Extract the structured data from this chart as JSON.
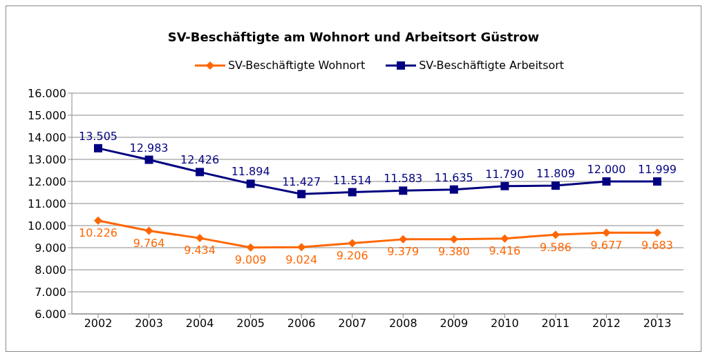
{
  "chart_data": {
    "type": "line",
    "title": "SV-Beschäftigte am Wohnort und Arbeitsort Güstrow",
    "categories": [
      "2002",
      "2003",
      "2004",
      "2005",
      "2006",
      "2007",
      "2008",
      "2009",
      "2010",
      "2011",
      "2012",
      "2013"
    ],
    "series": [
      {
        "name": "SV-Beschäftigte Wohnort",
        "color": "#ff6600",
        "marker": "diamond",
        "values": [
          10226,
          9764,
          9434,
          9009,
          9024,
          9206,
          9379,
          9380,
          9416,
          9586,
          9677,
          9683
        ],
        "value_labels": [
          "10.226",
          "9.764",
          "9.434",
          "9.009",
          "9.024",
          "9.206",
          "9.379",
          "9.380",
          "9.416",
          "9.586",
          "9.677",
          "9.683"
        ]
      },
      {
        "name": "SV-Beschäftigte Arbeitsort",
        "color": "#000080",
        "marker": "square",
        "values": [
          13505,
          12983,
          12426,
          11894,
          11427,
          11514,
          11583,
          11635,
          11790,
          11809,
          12000,
          11999
        ],
        "value_labels": [
          "13.505",
          "12.983",
          "12.426",
          "11.894",
          "11.427",
          "11.514",
          "11.583",
          "11.635",
          "11.790",
          "11.809",
          "12.000",
          "11.999"
        ]
      }
    ],
    "ylim": [
      6000,
      16000
    ],
    "yticks": [
      {
        "value": 6000,
        "label": "6.000"
      },
      {
        "value": 7000,
        "label": "7.000"
      },
      {
        "value": 8000,
        "label": "8.000"
      },
      {
        "value": 9000,
        "label": "9.000"
      },
      {
        "value": 10000,
        "label": "10.000"
      },
      {
        "value": 11000,
        "label": "11.000"
      },
      {
        "value": 12000,
        "label": "12.000"
      },
      {
        "value": 13000,
        "label": "13.000"
      },
      {
        "value": 14000,
        "label": "14.000"
      },
      {
        "value": 15000,
        "label": "15.000"
      },
      {
        "value": 16000,
        "label": "16.000"
      }
    ],
    "grid": "y",
    "legend": "top",
    "line_style": "solid"
  }
}
